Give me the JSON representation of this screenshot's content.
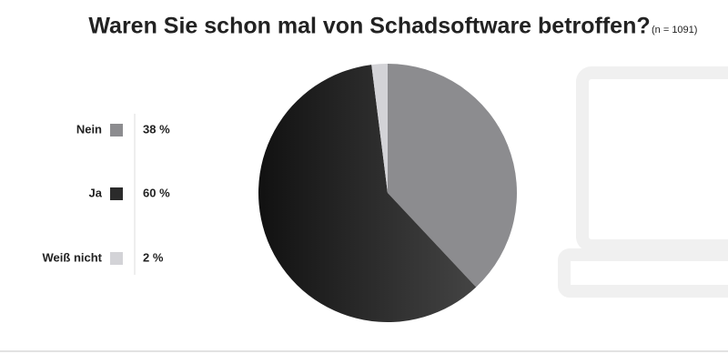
{
  "chart_data": {
    "type": "pie",
    "title": "Waren Sie schon mal von Schadsoftware betroffen?",
    "subtitle": "(n = 1091)",
    "categories": [
      "Nein",
      "Ja",
      "Weiß nicht"
    ],
    "values": [
      38,
      60,
      2
    ],
    "value_labels": [
      "38 %",
      "60 %",
      "2 %"
    ],
    "colors": [
      "#8c8c8f",
      "#2b2b2b",
      "#d3d3d7"
    ]
  }
}
